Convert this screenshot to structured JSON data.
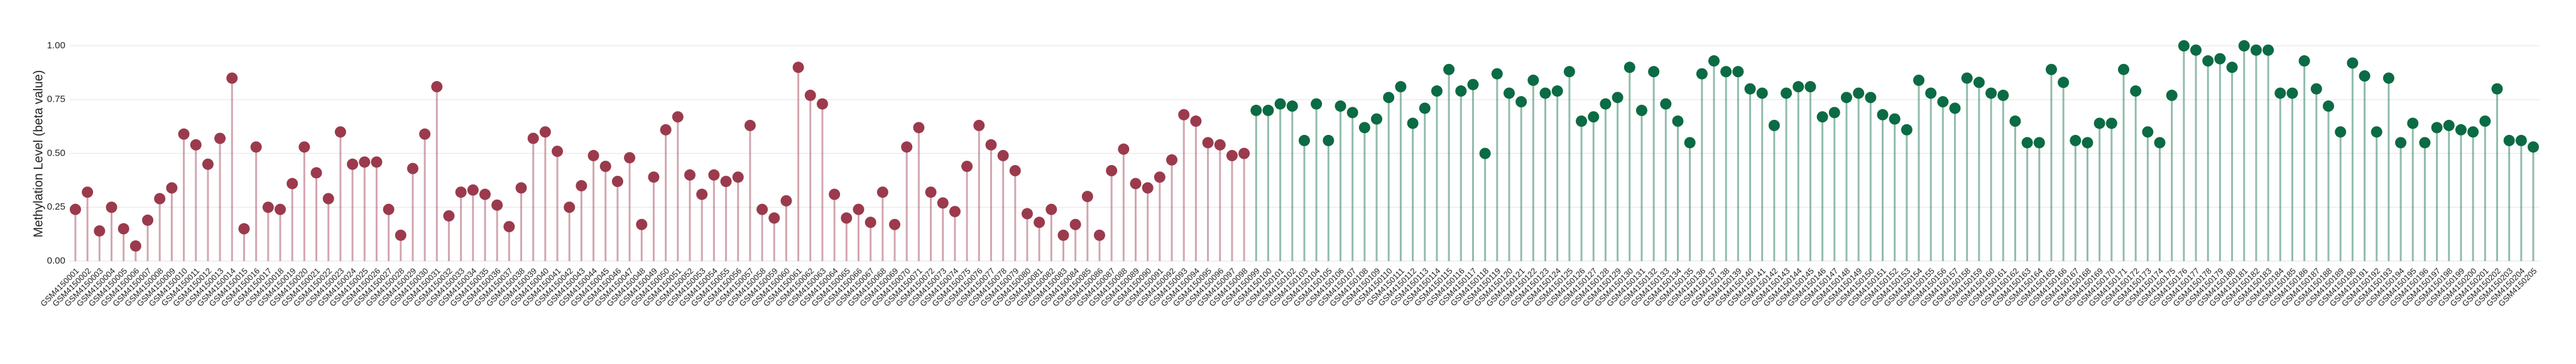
{
  "chart_data": {
    "type": "lollipop",
    "y_label": "Methylation Level (beta value)",
    "ylim": [
      0,
      1
    ],
    "yticks": [
      {
        "value": 0,
        "label": "0.00"
      },
      {
        "value": 0.25,
        "label": "0.25"
      },
      {
        "value": 0.5,
        "label": "0.50"
      },
      {
        "value": 0.75,
        "label": "0.75"
      },
      {
        "value": 1,
        "label": "1.00"
      }
    ],
    "grid": true,
    "categories": [
      "GSM4150001",
      "GSM4150002",
      "GSM4150003",
      "GSM4150004",
      "GSM4150005",
      "GSM4150006",
      "GSM4150007",
      "GSM4150008",
      "GSM4150009",
      "GSM4150010",
      "GSM4150011",
      "GSM4150012",
      "GSM4150013",
      "GSM4150014",
      "GSM4150015",
      "GSM4150016",
      "GSM4150017",
      "GSM4150018",
      "GSM4150019",
      "GSM4150020",
      "GSM4150021",
      "GSM4150022",
      "GSM4150023",
      "GSM4150024",
      "GSM4150025",
      "GSM4150026",
      "GSM4150027",
      "GSM4150028",
      "GSM4150029",
      "GSM4150030",
      "GSM4150031",
      "GSM4150032",
      "GSM4150033",
      "GSM4150034",
      "GSM4150035",
      "GSM4150036",
      "GSM4150037",
      "GSM4150038",
      "GSM4150039",
      "GSM4150040",
      "GSM4150041",
      "GSM4150042",
      "GSM4150043",
      "GSM4150044",
      "GSM4150045",
      "GSM4150046",
      "GSM4150047",
      "GSM4150048",
      "GSM4150049",
      "GSM4150050",
      "GSM4150051",
      "GSM4150052",
      "GSM4150053",
      "GSM4150054",
      "GSM4150055",
      "GSM4150056",
      "GSM4150057",
      "GSM4150058",
      "GSM4150059",
      "GSM4150060",
      "GSM4150061",
      "GSM4150062",
      "GSM4150063",
      "GSM4150064",
      "GSM4150065",
      "GSM4150066",
      "GSM4150067",
      "GSM4150068",
      "GSM4150069",
      "GSM4150070",
      "GSM4150071",
      "GSM4150072",
      "GSM4150073",
      "GSM4150074",
      "GSM4150075",
      "GSM4150076",
      "GSM4150077",
      "GSM4150078",
      "GSM4150079",
      "GSM4150080",
      "GSM4150081",
      "GSM4150082",
      "GSM4150083",
      "GSM4150084",
      "GSM4150085",
      "GSM4150086",
      "GSM4150087",
      "GSM4150088",
      "GSM4150089",
      "GSM4150090",
      "GSM4150091",
      "GSM4150092",
      "GSM4150093",
      "GSM4150094",
      "GSM4150095",
      "GSM4150096",
      "GSM4150097",
      "GSM4150098",
      "GSM4150099",
      "GSM4150100",
      "GSM4150101",
      "GSM4150102",
      "GSM4150103",
      "GSM4150104",
      "GSM4150105",
      "GSM4150106",
      "GSM4150107",
      "GSM4150108",
      "GSM4150109",
      "GSM4150110",
      "GSM4150111",
      "GSM4150112",
      "GSM4150113",
      "GSM4150114",
      "GSM4150115",
      "GSM4150116",
      "GSM4150117",
      "GSM4150118",
      "GSM4150119",
      "GSM4150120",
      "GSM4150121",
      "GSM4150122",
      "GSM4150123",
      "GSM4150124",
      "GSM4150125",
      "GSM4150126",
      "GSM4150127",
      "GSM4150128",
      "GSM4150129",
      "GSM4150130",
      "GSM4150131",
      "GSM4150132",
      "GSM4150133",
      "GSM4150134",
      "GSM4150135",
      "GSM4150136",
      "GSM4150137",
      "GSM4150138",
      "GSM4150139",
      "GSM4150140",
      "GSM4150141",
      "GSM4150142",
      "GSM4150143",
      "GSM4150144",
      "GSM4150145",
      "GSM4150146",
      "GSM4150147",
      "GSM4150148",
      "GSM4150149",
      "GSM4150150",
      "GSM4150151",
      "GSM4150152",
      "GSM4150153",
      "GSM4150154",
      "GSM4150155",
      "GSM4150156",
      "GSM4150157",
      "GSM4150158",
      "GSM4150159",
      "GSM4150160",
      "GSM4150161",
      "GSM4150162",
      "GSM4150163",
      "GSM4150164",
      "GSM4150165",
      "GSM4150166",
      "GSM4150167",
      "GSM4150168",
      "GSM4150169",
      "GSM4150170",
      "GSM4150171",
      "GSM4150172",
      "GSM4150173",
      "GSM4150174",
      "GSM4150175",
      "GSM4150176",
      "GSM4150177",
      "GSM4150178",
      "GSM4150179",
      "GSM4150180",
      "GSM4150181",
      "GSM4150182",
      "GSM4150183",
      "GSM4150184",
      "GSM4150185",
      "GSM4150186",
      "GSM4150187",
      "GSM4150188",
      "GSM4150189",
      "GSM4150190",
      "GSM4150191",
      "GSM4150192",
      "GSM4150193",
      "GSM4150194",
      "GSM4150195",
      "GSM4150196",
      "GSM4150197",
      "GSM4150198",
      "GSM4150199",
      "GSM4150200",
      "GSM4150201",
      "GSM4150202",
      "GSM4150203",
      "GSM4150204",
      "GSM4150205"
    ],
    "values": [
      0.24,
      0.32,
      0.14,
      0.25,
      0.15,
      0.07,
      0.19,
      0.29,
      0.34,
      0.59,
      0.54,
      0.45,
      0.57,
      0.85,
      0.15,
      0.53,
      0.25,
      0.24,
      0.36,
      0.53,
      0.41,
      0.29,
      0.6,
      0.45,
      0.46,
      0.46,
      0.24,
      0.12,
      0.43,
      0.59,
      0.81,
      0.21,
      0.32,
      0.33,
      0.31,
      0.26,
      0.16,
      0.34,
      0.57,
      0.6,
      0.51,
      0.25,
      0.35,
      0.49,
      0.44,
      0.37,
      0.48,
      0.17,
      0.39,
      0.61,
      0.67,
      0.4,
      0.31,
      0.4,
      0.37,
      0.39,
      0.63,
      0.24,
      0.2,
      0.28,
      0.9,
      0.77,
      0.73,
      0.31,
      0.2,
      0.24,
      0.18,
      0.32,
      0.17,
      0.53,
      0.62,
      0.32,
      0.27,
      0.23,
      0.44,
      0.63,
      0.54,
      0.49,
      0.42,
      0.22,
      0.18,
      0.24,
      0.12,
      0.17,
      0.3,
      0.12,
      0.42,
      0.52,
      0.36,
      0.34,
      0.39,
      0.47,
      0.68,
      0.65,
      0.55,
      0.54,
      0.49,
      0.5,
      0.7,
      0.7,
      0.73,
      0.72,
      0.56,
      0.73,
      0.56,
      0.72,
      0.69,
      0.62,
      0.66,
      0.76,
      0.81,
      0.64,
      0.71,
      0.79,
      0.89,
      0.79,
      0.82,
      0.5,
      0.87,
      0.78,
      0.74,
      0.84,
      0.78,
      0.79,
      0.88,
      0.65,
      0.67,
      0.73,
      0.76,
      0.9,
      0.7,
      0.88,
      0.73,
      0.65,
      0.55,
      0.87,
      0.93,
      0.88,
      0.88,
      0.8,
      0.78,
      0.63,
      0.78,
      0.81,
      0.81,
      0.67,
      0.69,
      0.76,
      0.78,
      0.76,
      0.68,
      0.66,
      0.61,
      0.84,
      0.78,
      0.74,
      0.71,
      0.85,
      0.83,
      0.78,
      0.77,
      0.65,
      0.55,
      0.55,
      0.89,
      0.83,
      0.56,
      0.55,
      0.64,
      0.64,
      0.89,
      0.79,
      0.6,
      0.55,
      0.77,
      1.0,
      0.98,
      0.93,
      0.94,
      0.9,
      1.0,
      0.98,
      0.98,
      0.78,
      0.78,
      0.93,
      0.8,
      0.72,
      0.6,
      0.92,
      0.86,
      0.6,
      0.85,
      0.55,
      0.64,
      0.55,
      0.62,
      0.63,
      0.61,
      0.6,
      0.65,
      0.8,
      0.56,
      0.56,
      0.53
    ],
    "colors": [
      "#9b3a4d",
      "#9b3a4d",
      "#9b3a4d",
      "#9b3a4d",
      "#9b3a4d",
      "#9b3a4d",
      "#9b3a4d",
      "#9b3a4d",
      "#9b3a4d",
      "#9b3a4d",
      "#9b3a4d",
      "#9b3a4d",
      "#9b3a4d",
      "#9b3a4d",
      "#9b3a4d",
      "#9b3a4d",
      "#9b3a4d",
      "#9b3a4d",
      "#9b3a4d",
      "#9b3a4d",
      "#9b3a4d",
      "#9b3a4d",
      "#9b3a4d",
      "#9b3a4d",
      "#9b3a4d",
      "#9b3a4d",
      "#9b3a4d",
      "#9b3a4d",
      "#9b3a4d",
      "#9b3a4d",
      "#9b3a4d",
      "#9b3a4d",
      "#9b3a4d",
      "#9b3a4d",
      "#9b3a4d",
      "#9b3a4d",
      "#9b3a4d",
      "#9b3a4d",
      "#9b3a4d",
      "#9b3a4d",
      "#9b3a4d",
      "#9b3a4d",
      "#9b3a4d",
      "#9b3a4d",
      "#9b3a4d",
      "#9b3a4d",
      "#9b3a4d",
      "#9b3a4d",
      "#9b3a4d",
      "#9b3a4d",
      "#9b3a4d",
      "#9b3a4d",
      "#9b3a4d",
      "#9b3a4d",
      "#9b3a4d",
      "#9b3a4d",
      "#9b3a4d",
      "#9b3a4d",
      "#9b3a4d",
      "#9b3a4d",
      "#9b3a4d",
      "#9b3a4d",
      "#9b3a4d",
      "#9b3a4d",
      "#9b3a4d",
      "#9b3a4d",
      "#9b3a4d",
      "#9b3a4d",
      "#9b3a4d",
      "#9b3a4d",
      "#9b3a4d",
      "#9b3a4d",
      "#9b3a4d",
      "#9b3a4d",
      "#9b3a4d",
      "#9b3a4d",
      "#9b3a4d",
      "#9b3a4d",
      "#9b3a4d",
      "#9b3a4d",
      "#9b3a4d",
      "#9b3a4d",
      "#9b3a4d",
      "#9b3a4d",
      "#9b3a4d",
      "#9b3a4d",
      "#9b3a4d",
      "#9b3a4d",
      "#9b3a4d",
      "#9b3a4d",
      "#9b3a4d",
      "#9b3a4d",
      "#9b3a4d",
      "#9b3a4d",
      "#9b3a4d",
      "#9b3a4d",
      "#9b3a4d",
      "#9b3a4d",
      "#0b6b44",
      "#0b6b44",
      "#0b6b44",
      "#0b6b44",
      "#0b6b44",
      "#0b6b44",
      "#0b6b44",
      "#0b6b44",
      "#0b6b44",
      "#0b6b44",
      "#0b6b44",
      "#0b6b44",
      "#0b6b44",
      "#0b6b44",
      "#0b6b44",
      "#0b6b44",
      "#0b6b44",
      "#0b6b44",
      "#0b6b44",
      "#0b6b44",
      "#0b6b44",
      "#0b6b44",
      "#0b6b44",
      "#0b6b44",
      "#0b6b44",
      "#0b6b44",
      "#0b6b44",
      "#0b6b44",
      "#0b6b44",
      "#0b6b44",
      "#0b6b44",
      "#0b6b44",
      "#0b6b44",
      "#0b6b44",
      "#0b6b44",
      "#0b6b44",
      "#0b6b44",
      "#0b6b44",
      "#0b6b44",
      "#0b6b44",
      "#0b6b44",
      "#0b6b44",
      "#0b6b44",
      "#0b6b44",
      "#0b6b44",
      "#0b6b44",
      "#0b6b44",
      "#0b6b44",
      "#0b6b44",
      "#0b6b44",
      "#0b6b44",
      "#0b6b44",
      "#0b6b44",
      "#0b6b44",
      "#0b6b44",
      "#0b6b44",
      "#0b6b44",
      "#0b6b44",
      "#0b6b44",
      "#0b6b44",
      "#0b6b44",
      "#0b6b44",
      "#0b6b44",
      "#0b6b44",
      "#0b6b44",
      "#0b6b44",
      "#0b6b44",
      "#0b6b44",
      "#0b6b44",
      "#0b6b44",
      "#0b6b44",
      "#0b6b44",
      "#0b6b44",
      "#0b6b44",
      "#0b6b44",
      "#0b6b44",
      "#0b6b44",
      "#0b6b44",
      "#0b6b44",
      "#0b6b44",
      "#0b6b44",
      "#0b6b44",
      "#0b6b44",
      "#0b6b44",
      "#0b6b44",
      "#0b6b44",
      "#0b6b44",
      "#0b6b44",
      "#0b6b44",
      "#0b6b44",
      "#0b6b44",
      "#0b6b44",
      "#0b6b44",
      "#0b6b44",
      "#0b6b44",
      "#0b6b44",
      "#0b6b44",
      "#0b6b44",
      "#0b6b44",
      "#0b6b44",
      "#0b6b44",
      "#0b6b44",
      "#0b6b44",
      "#0b6b44",
      "#0b6b44",
      "#0b6b44",
      "#0b6b44"
    ]
  }
}
